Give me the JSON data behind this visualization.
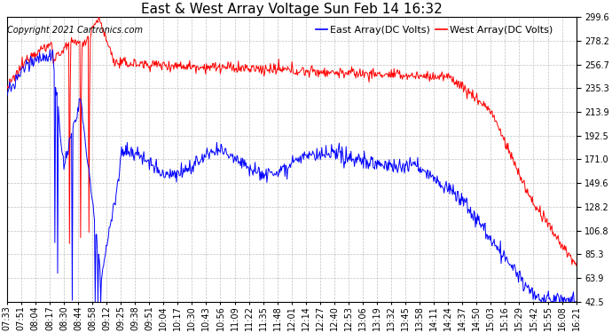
{
  "title": "East & West Array Voltage Sun Feb 14 16:32",
  "copyright": "Copyright 2021 Cartronics.com",
  "legend_east": "East Array(DC Volts)",
  "legend_west": "West Array(DC Volts)",
  "east_color": "blue",
  "west_color": "red",
  "background_color": "#ffffff",
  "grid_color": "#c0c0c0",
  "ylim": [
    42.5,
    299.6
  ],
  "yticks": [
    42.5,
    63.9,
    85.3,
    106.8,
    128.2,
    149.6,
    171.0,
    192.5,
    213.9,
    235.3,
    256.7,
    278.2,
    299.6
  ],
  "xtick_labels": [
    "07:33",
    "07:51",
    "08:04",
    "08:17",
    "08:30",
    "08:44",
    "08:58",
    "09:12",
    "09:25",
    "09:38",
    "09:51",
    "10:04",
    "10:17",
    "10:30",
    "10:43",
    "10:56",
    "11:09",
    "11:22",
    "11:35",
    "11:48",
    "12:01",
    "12:14",
    "12:27",
    "12:40",
    "12:53",
    "13:06",
    "13:19",
    "13:32",
    "13:45",
    "13:58",
    "14:11",
    "14:24",
    "14:37",
    "14:50",
    "15:03",
    "15:16",
    "15:29",
    "15:42",
    "15:55",
    "16:08",
    "16:21"
  ],
  "title_fontsize": 11,
  "axis_fontsize": 7,
  "legend_fontsize": 8,
  "copyright_fontsize": 7
}
